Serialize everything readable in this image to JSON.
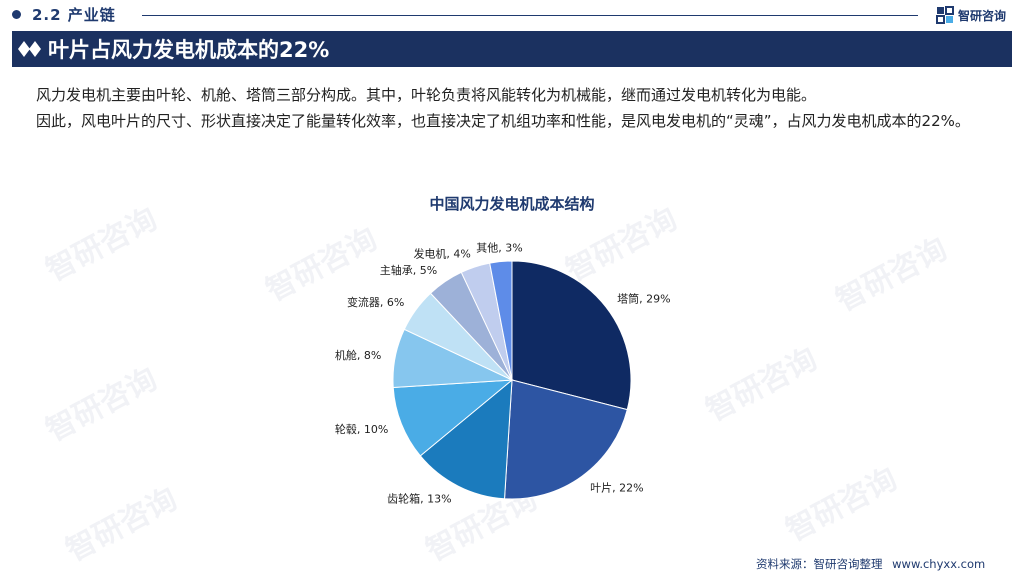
{
  "header": {
    "section": "2.2 产业链",
    "brand": "智研咨询"
  },
  "title": "叶片占风力发电机成本的22%",
  "paragraphs": [
    "风力发电机主要由叶轮、机舱、塔筒三部分构成。其中，叶轮负责将风能转化为机械能，继而通过发电机转化为电能。",
    "因此，风电叶片的尺寸、形状直接决定了能量转化效率，也直接决定了机组功率和性能，是风电发电机的“灵魂”，占风力发电机成本的22%。"
  ],
  "chart_data": {
    "type": "pie",
    "title": "中国风力发电机成本结构",
    "slices": [
      {
        "label": "塔筒",
        "value": 29,
        "display": "塔筒, 29%",
        "color": "#0f2a63"
      },
      {
        "label": "叶片",
        "value": 22,
        "display": "叶片, 22%",
        "color": "#2d55a3"
      },
      {
        "label": "齿轮箱",
        "value": 13,
        "display": "齿轮箱, 13%",
        "color": "#1b7bbd"
      },
      {
        "label": "轮毂",
        "value": 10,
        "display": "轮毂, 10%",
        "color": "#4aace6"
      },
      {
        "label": "机舱",
        "value": 8,
        "display": "机舱, 8%",
        "color": "#86c6ee"
      },
      {
        "label": "变流器",
        "value": 6,
        "display": "变流器, 6%",
        "color": "#bfe1f5"
      },
      {
        "label": "主轴承",
        "value": 5,
        "display": "主轴承, 5%",
        "color": "#9db1d8"
      },
      {
        "label": "发电机",
        "value": 4,
        "display": "发电机, 4%",
        "color": "#c0cdee"
      },
      {
        "label": "其他",
        "value": 3,
        "display": "其他, 3%",
        "color": "#5e8ce8"
      }
    ]
  },
  "footer": {
    "source": "资料来源：智研咨询整理",
    "url": "www.chyxx.com"
  },
  "watermark": "智研咨询"
}
